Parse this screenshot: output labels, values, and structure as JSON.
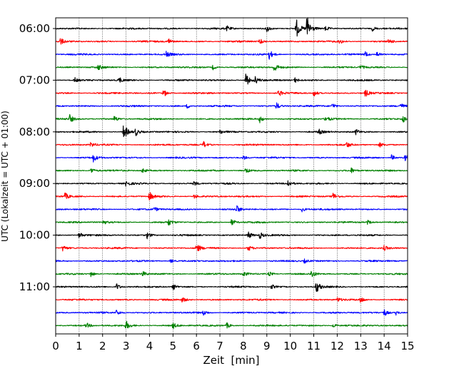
{
  "chart_data": {
    "type": "line",
    "title": "",
    "xlabel": "Zeit  [min]",
    "ylabel": "UTC (Lokalzeit = UTC + 01:00)",
    "xlim": [
      0,
      15
    ],
    "x_ticks": [
      "0",
      "1",
      "2",
      "3",
      "4",
      "5",
      "6",
      "7",
      "8",
      "9",
      "10",
      "11",
      "12",
      "13",
      "14",
      "15"
    ],
    "y_ticks": [
      "06:00",
      "07:00",
      "08:00",
      "09:00",
      "10:00",
      "11:00"
    ],
    "grid": "vertical dotted lines at each minute",
    "trace_interval_minutes": 15,
    "color_cycle": [
      "#000000",
      "#ff0000",
      "#0000ff",
      "#008000"
    ],
    "traces": [
      {
        "start": "06:00",
        "color": "#000000",
        "events": [
          {
            "min": 7.3,
            "amp": 0.3
          },
          {
            "min": 9.0,
            "amp": 0.45
          },
          {
            "min": 10.25,
            "amp": 1.3
          },
          {
            "min": 10.7,
            "amp": 1.8
          },
          {
            "min": 11.5,
            "amp": 0.35
          },
          {
            "min": 13.5,
            "amp": 0.3
          }
        ]
      },
      {
        "start": "06:15",
        "color": "#ff0000",
        "events": [
          {
            "min": 0.2,
            "amp": 0.4
          },
          {
            "min": 4.8,
            "amp": 0.45
          },
          {
            "min": 8.7,
            "amp": 0.35
          },
          {
            "min": 12.1,
            "amp": 0.3
          },
          {
            "min": 14.2,
            "amp": 0.35
          }
        ]
      },
      {
        "start": "06:30",
        "color": "#0000ff",
        "events": [
          {
            "min": 4.7,
            "amp": 0.4
          },
          {
            "min": 9.1,
            "amp": 0.6
          },
          {
            "min": 13.2,
            "amp": 0.35
          },
          {
            "min": 13.7,
            "amp": 0.4
          }
        ]
      },
      {
        "start": "06:45",
        "color": "#008000",
        "events": [
          {
            "min": 1.8,
            "amp": 0.35
          },
          {
            "min": 6.7,
            "amp": 0.3
          },
          {
            "min": 9.3,
            "amp": 0.7
          },
          {
            "min": 13.0,
            "amp": 0.3
          }
        ]
      },
      {
        "start": "07:00",
        "color": "#000000",
        "events": [
          {
            "min": 0.8,
            "amp": 0.35
          },
          {
            "min": 2.7,
            "amp": 0.35
          },
          {
            "min": 8.1,
            "amp": 0.95
          },
          {
            "min": 8.5,
            "amp": 0.45
          },
          {
            "min": 10.2,
            "amp": 0.3
          }
        ]
      },
      {
        "start": "07:15",
        "color": "#ff0000",
        "events": [
          {
            "min": 4.6,
            "amp": 0.5
          },
          {
            "min": 9.5,
            "amp": 0.4
          },
          {
            "min": 11.0,
            "amp": 0.45
          },
          {
            "min": 13.2,
            "amp": 0.5
          }
        ]
      },
      {
        "start": "07:30",
        "color": "#0000ff",
        "events": [
          {
            "min": 5.6,
            "amp": 0.3
          },
          {
            "min": 9.4,
            "amp": 0.45
          },
          {
            "min": 11.8,
            "amp": 0.4
          },
          {
            "min": 14.7,
            "amp": 0.3
          }
        ]
      },
      {
        "start": "07:45",
        "color": "#008000",
        "events": [
          {
            "min": 0.6,
            "amp": 0.5
          },
          {
            "min": 2.5,
            "amp": 0.4
          },
          {
            "min": 8.7,
            "amp": 0.45
          },
          {
            "min": 11.5,
            "amp": 0.4
          },
          {
            "min": 14.8,
            "amp": 0.45
          }
        ]
      },
      {
        "start": "08:00",
        "color": "#000000",
        "events": [
          {
            "min": 2.9,
            "amp": 1.2
          },
          {
            "min": 3.4,
            "amp": 0.5
          },
          {
            "min": 7.0,
            "amp": 0.3
          },
          {
            "min": 11.2,
            "amp": 0.35
          },
          {
            "min": 12.8,
            "amp": 0.35
          }
        ]
      },
      {
        "start": "08:15",
        "color": "#ff0000",
        "events": [
          {
            "min": 1.5,
            "amp": 0.35
          },
          {
            "min": 6.3,
            "amp": 0.4
          },
          {
            "min": 12.4,
            "amp": 0.35
          },
          {
            "min": 13.8,
            "amp": 0.3
          }
        ]
      },
      {
        "start": "08:30",
        "color": "#0000ff",
        "events": [
          {
            "min": 1.6,
            "amp": 0.5
          },
          {
            "min": 8.0,
            "amp": 0.3
          },
          {
            "min": 14.3,
            "amp": 0.4
          },
          {
            "min": 14.9,
            "amp": 0.45
          }
        ]
      },
      {
        "start": "08:45",
        "color": "#008000",
        "events": [
          {
            "min": 1.5,
            "amp": 0.4
          },
          {
            "min": 3.7,
            "amp": 0.35
          },
          {
            "min": 8.1,
            "amp": 0.35
          },
          {
            "min": 12.6,
            "amp": 0.3
          }
        ]
      },
      {
        "start": "09:00",
        "color": "#000000",
        "events": [
          {
            "min": 3.0,
            "amp": 0.35
          },
          {
            "min": 5.9,
            "amp": 0.3
          },
          {
            "min": 9.9,
            "amp": 0.45
          }
        ]
      },
      {
        "start": "09:15",
        "color": "#ff0000",
        "events": [
          {
            "min": 0.4,
            "amp": 0.4
          },
          {
            "min": 4.0,
            "amp": 0.55
          },
          {
            "min": 5.9,
            "amp": 0.3
          },
          {
            "min": 11.8,
            "amp": 0.5
          }
        ]
      },
      {
        "start": "09:30",
        "color": "#0000ff",
        "events": [
          {
            "min": 4.2,
            "amp": 0.3
          },
          {
            "min": 7.7,
            "amp": 0.5
          },
          {
            "min": 10.5,
            "amp": 0.3
          }
        ]
      },
      {
        "start": "09:45",
        "color": "#008000",
        "events": [
          {
            "min": 2.0,
            "amp": 0.35
          },
          {
            "min": 4.8,
            "amp": 0.4
          },
          {
            "min": 7.5,
            "amp": 0.45
          },
          {
            "min": 13.3,
            "amp": 0.3
          }
        ]
      },
      {
        "start": "10:00",
        "color": "#000000",
        "events": [
          {
            "min": 1.0,
            "amp": 0.35
          },
          {
            "min": 3.9,
            "amp": 0.45
          },
          {
            "min": 8.2,
            "amp": 0.55
          },
          {
            "min": 8.7,
            "amp": 0.45
          }
        ]
      },
      {
        "start": "10:15",
        "color": "#ff0000",
        "events": [
          {
            "min": 0.3,
            "amp": 0.4
          },
          {
            "min": 6.0,
            "amp": 0.65
          },
          {
            "min": 8.2,
            "amp": 0.4
          },
          {
            "min": 14.0,
            "amp": 0.3
          }
        ]
      },
      {
        "start": "10:30",
        "color": "#0000ff",
        "events": [
          {
            "min": 4.9,
            "amp": 0.25
          },
          {
            "min": 10.6,
            "amp": 0.25
          }
        ]
      },
      {
        "start": "10:45",
        "color": "#008000",
        "events": [
          {
            "min": 1.5,
            "amp": 0.4
          },
          {
            "min": 3.7,
            "amp": 0.35
          },
          {
            "min": 8.0,
            "amp": 0.35
          },
          {
            "min": 9.1,
            "amp": 0.3
          },
          {
            "min": 10.9,
            "amp": 0.5
          }
        ]
      },
      {
        "start": "11:00",
        "color": "#000000",
        "events": [
          {
            "min": 2.6,
            "amp": 0.45
          },
          {
            "min": 5.0,
            "amp": 0.4
          },
          {
            "min": 9.2,
            "amp": 0.3
          },
          {
            "min": 11.1,
            "amp": 0.85
          }
        ]
      },
      {
        "start": "11:15",
        "color": "#ff0000",
        "events": [
          {
            "min": 5.4,
            "amp": 0.35
          },
          {
            "min": 12.0,
            "amp": 0.3
          },
          {
            "min": 13.0,
            "amp": 0.45
          }
        ]
      },
      {
        "start": "11:30",
        "color": "#0000ff",
        "events": [
          {
            "min": 2.6,
            "amp": 0.4
          },
          {
            "min": 6.3,
            "amp": 0.35
          },
          {
            "min": 14.0,
            "amp": 0.45
          },
          {
            "min": 14.5,
            "amp": 0.3
          }
        ]
      },
      {
        "start": "11:45",
        "color": "#008000",
        "events": [
          {
            "min": 1.3,
            "amp": 0.35
          },
          {
            "min": 3.0,
            "amp": 0.55
          },
          {
            "min": 5.0,
            "amp": 0.35
          },
          {
            "min": 7.3,
            "amp": 0.35
          },
          {
            "min": 11.8,
            "amp": 0.3
          }
        ]
      }
    ]
  }
}
